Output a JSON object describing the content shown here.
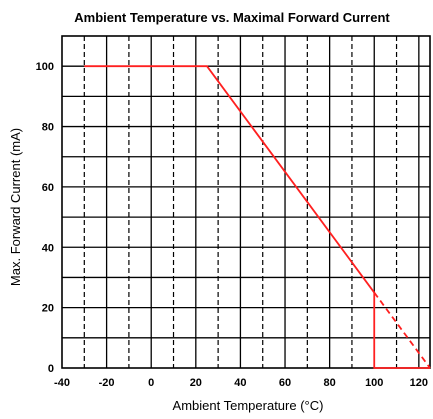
{
  "chart_data": {
    "type": "line",
    "title": "Ambient Temperature vs. Maximal Forward Current",
    "xlabel": "Ambient Temperature (°C)",
    "ylabel": "Max. Forward Current (mA)",
    "xlim": [
      -40,
      125
    ],
    "ylim": [
      0,
      110
    ],
    "xticks": [
      -40,
      -20,
      0,
      20,
      40,
      60,
      80,
      100,
      120
    ],
    "yticks": [
      0,
      20,
      40,
      60,
      80,
      100
    ],
    "xtick_labels": [
      "-40",
      "-20",
      "0",
      "20",
      "40",
      "60",
      "80",
      "100",
      "120"
    ],
    "ytick_labels": [
      "0",
      "20",
      "40",
      "60",
      "80",
      "100"
    ],
    "grid": true,
    "line_color": "#ff2020",
    "series": [
      {
        "style": "solid",
        "x": [
          -30,
          25,
          100
        ],
        "y": [
          100,
          100,
          25
        ]
      },
      {
        "style": "solid",
        "x": [
          100,
          100,
          125
        ],
        "y": [
          25,
          0,
          0
        ]
      },
      {
        "style": "dashed",
        "x": [
          100,
          125
        ],
        "y": [
          25,
          0
        ]
      }
    ]
  }
}
